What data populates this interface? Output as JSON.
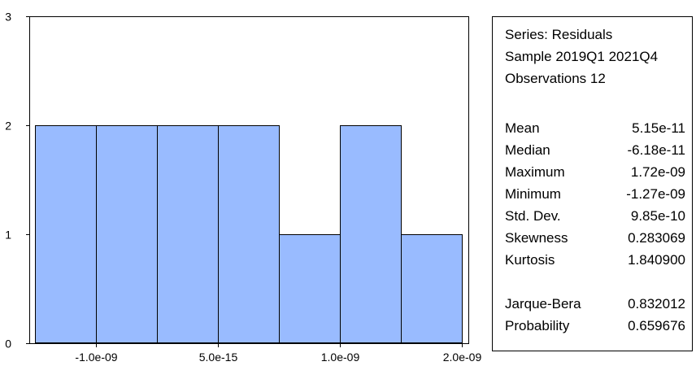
{
  "chart_data": {
    "type": "bar",
    "title": "",
    "xlabel": "",
    "ylabel": "",
    "bins": [
      {
        "from": -1.5e-09,
        "to": -1e-09,
        "count": 2
      },
      {
        "from": -1e-09,
        "to": -5e-10,
        "count": 2
      },
      {
        "from": -5e-10,
        "to": 0.0,
        "count": 2
      },
      {
        "from": 0.0,
        "to": 5e-10,
        "count": 2
      },
      {
        "from": 5e-10,
        "to": 1e-09,
        "count": 1
      },
      {
        "from": 1e-09,
        "to": 1.5e-09,
        "count": 2
      },
      {
        "from": 1.5e-09,
        "to": 2e-09,
        "count": 1
      }
    ],
    "values": [
      2,
      2,
      2,
      2,
      1,
      2,
      1
    ],
    "xlim": [
      -1.5e-09,
      2e-09
    ],
    "ylim": [
      0,
      3
    ],
    "x_ticks": [
      {
        "value": -1e-09,
        "label": "-1.0e-09"
      },
      {
        "value": 0.0,
        "label": "5.0e-15"
      },
      {
        "value": 1e-09,
        "label": "1.0e-09"
      },
      {
        "value": 2e-09,
        "label": "2.0e-09"
      }
    ],
    "y_ticks": [
      {
        "value": 0,
        "label": "0"
      },
      {
        "value": 1,
        "label": "1"
      },
      {
        "value": 2,
        "label": "2"
      },
      {
        "value": 3,
        "label": "3"
      }
    ],
    "grid": false,
    "bar_color": "#99bbff",
    "bar_edge_color": "#000000"
  },
  "stats": {
    "series": "Series: Residuals",
    "sample": "Sample 2019Q1 2021Q4",
    "observations": "Observations 12",
    "rows": [
      {
        "label": "Mean",
        "value": "5.15e-11"
      },
      {
        "label": "Median",
        "value": "-6.18e-11"
      },
      {
        "label": "Maximum",
        "value": "1.72e-09"
      },
      {
        "label": "Minimum",
        "value": "-1.27e-09"
      },
      {
        "label": "Std. Dev.",
        "value": "9.85e-10"
      },
      {
        "label": "Skewness",
        "value": "0.283069"
      },
      {
        "label": "Kurtosis",
        "value": "1.840900"
      }
    ],
    "test_rows": [
      {
        "label": "Jarque-Bera",
        "value": "0.832012"
      },
      {
        "label": "Probability",
        "value": "0.659676"
      }
    ]
  }
}
